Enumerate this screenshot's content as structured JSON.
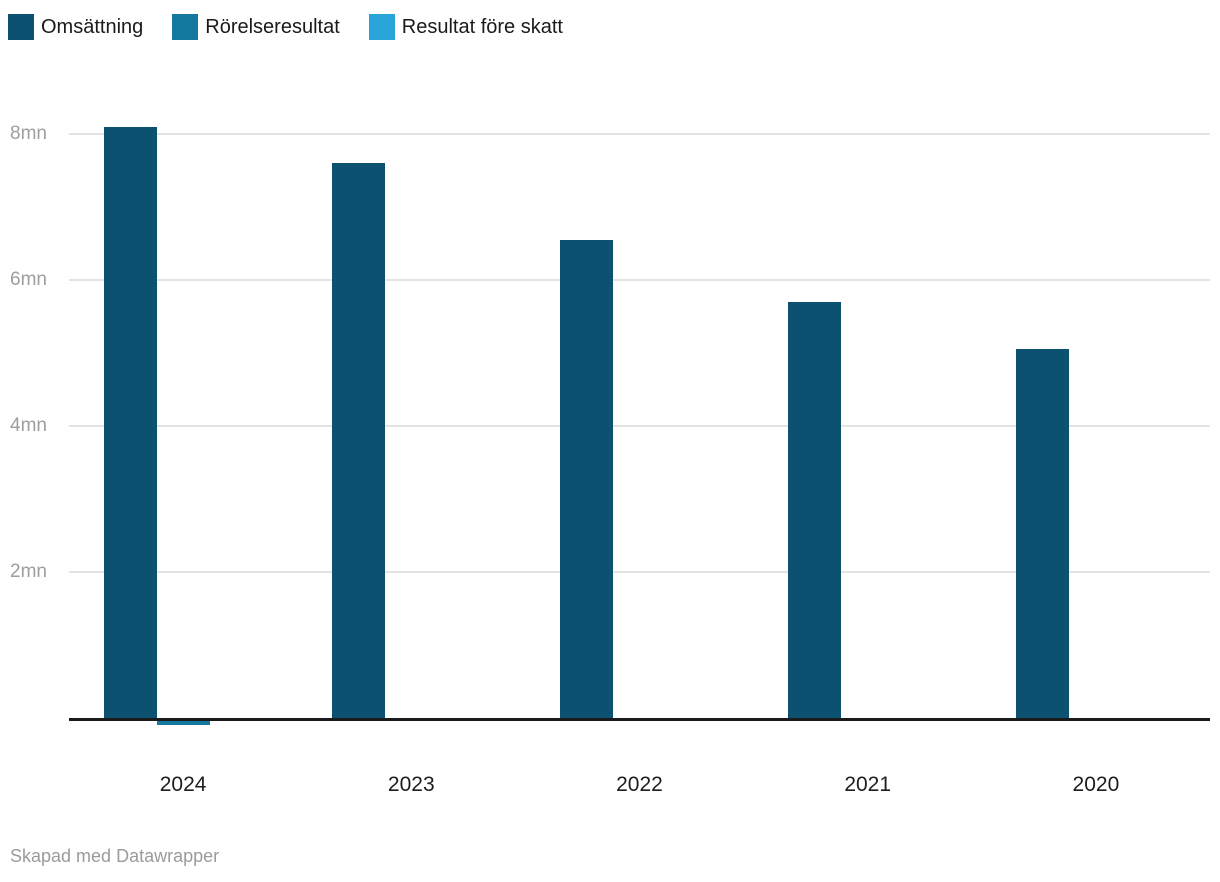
{
  "legend": {
    "items": [
      {
        "label": "Omsättning",
        "color": "#0c516f"
      },
      {
        "label": "Rörelseresultat",
        "color": "#15789e"
      },
      {
        "label": "Resultat före skatt",
        "color": "#28a4d8"
      }
    ]
  },
  "footer": {
    "text": "Skapad med Datawrapper"
  },
  "colors": {
    "background": "#ffffff",
    "axis_line": "#1a1a1a",
    "gridline": "#e4e4e4",
    "ytick_label": "#9e9e9e",
    "xtick_label": "#1d1d1d",
    "footer_text": "#9b9b9b"
  },
  "chart_data": {
    "type": "bar",
    "title": "",
    "xlabel": "",
    "ylabel": "",
    "unit": "mn",
    "categories": [
      "2024",
      "2023",
      "2022",
      "2021",
      "2020"
    ],
    "series": [
      {
        "name": "Omsättning",
        "color": "#0c516f",
        "values": [
          8.1,
          7.6,
          6.55,
          5.7,
          5.05
        ]
      },
      {
        "name": "Rörelseresultat",
        "color": "#15789e",
        "values": [
          -0.05,
          0,
          0,
          0,
          0
        ]
      },
      {
        "name": "Resultat före skatt",
        "color": "#28a4d8",
        "values": [
          0,
          0,
          0,
          0,
          0
        ]
      }
    ],
    "yticks": [
      {
        "value": 2,
        "label": "2mn"
      },
      {
        "value": 4,
        "label": "4mn"
      },
      {
        "value": 6,
        "label": "6mn"
      },
      {
        "value": 8,
        "label": "8mn"
      }
    ],
    "ylim": [
      -0.1,
      8.5
    ],
    "grid": true,
    "legend_position": "top-left"
  }
}
